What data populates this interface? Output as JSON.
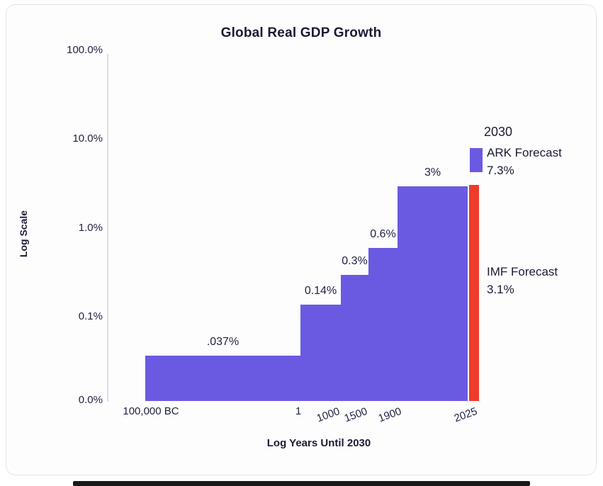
{
  "chart_data": {
    "type": "bar",
    "title": "Global Real GDP Growth",
    "xlabel": "Log Years Until 2030",
    "ylabel": "Log Scale",
    "y_scale": "log",
    "y_ticks": [
      "100.0%",
      "10.0%",
      "1.0%",
      "0.1%",
      "0.0%"
    ],
    "x_ticks": [
      "100,000 BC",
      "1",
      "1000",
      "1500",
      "1900",
      "2025"
    ],
    "bars": [
      {
        "period_start": "100,000 BC",
        "period_end": "1",
        "value": 0.037,
        "label": ".037%",
        "color": "purple"
      },
      {
        "period_start": "1",
        "period_end": "1000",
        "value": 0.14,
        "label": "0.14%",
        "color": "purple"
      },
      {
        "period_start": "1000",
        "period_end": "1500",
        "value": 0.3,
        "label": "0.3%",
        "color": "purple"
      },
      {
        "period_start": "1500",
        "period_end": "1900",
        "value": 0.6,
        "label": "0.6%",
        "color": "purple"
      },
      {
        "period_start": "1900",
        "period_end": "2025",
        "value": 3,
        "label": "3%",
        "color": "purple"
      },
      {
        "period_start": "2025",
        "period_end": "2030",
        "value": 3.1,
        "label": "",
        "color": "red"
      }
    ],
    "annotations": {
      "year_2030": "2030",
      "ark_forecast": {
        "label": "ARK Forecast",
        "value": "7.3%"
      },
      "imf_forecast": {
        "label": "IMF Forecast",
        "value": "3.1%"
      }
    },
    "colors": {
      "bar": "#6a5ae2",
      "imf_bar": "#ef3b2a",
      "text": "#1b1b35"
    }
  }
}
